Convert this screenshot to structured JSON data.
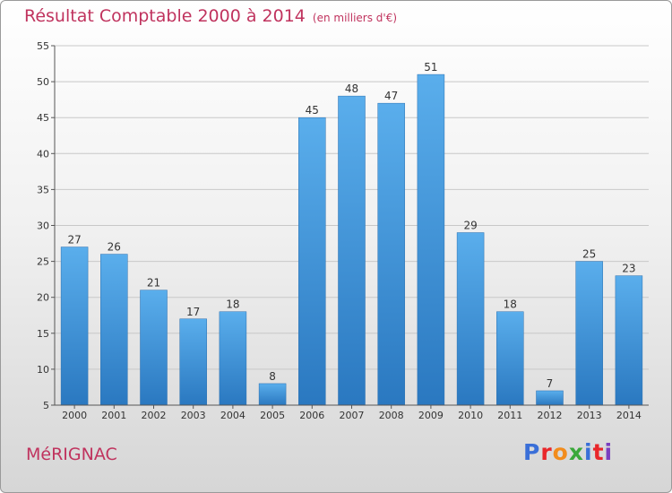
{
  "chart_data": {
    "type": "bar",
    "title": "Résultat Comptable 2000 à 2014",
    "subtitle": "(en milliers d'€)",
    "categories": [
      "2000",
      "2001",
      "2002",
      "2003",
      "2004",
      "2005",
      "2006",
      "2007",
      "2008",
      "2009",
      "2010",
      "2011",
      "2012",
      "2013",
      "2014"
    ],
    "values": [
      27,
      26,
      21,
      17,
      18,
      8,
      45,
      48,
      47,
      51,
      29,
      18,
      7,
      25,
      23
    ],
    "ylim": [
      5,
      55
    ],
    "yticks": [
      5,
      10,
      15,
      20,
      25,
      30,
      35,
      40,
      45,
      50,
      55
    ],
    "xlabel": "",
    "ylabel": "",
    "grid": true,
    "bar_color": "#3d8fd6"
  },
  "footer": {
    "city": "MéRIGNAC",
    "brand": "Proxiti",
    "brand_colors": [
      "#3a6fd8",
      "#e9262a",
      "#f28c1c",
      "#3aa83a",
      "#3a6fd8",
      "#e9262a",
      "#7a3fc0"
    ]
  },
  "colors": {
    "title": "#c0335e"
  }
}
